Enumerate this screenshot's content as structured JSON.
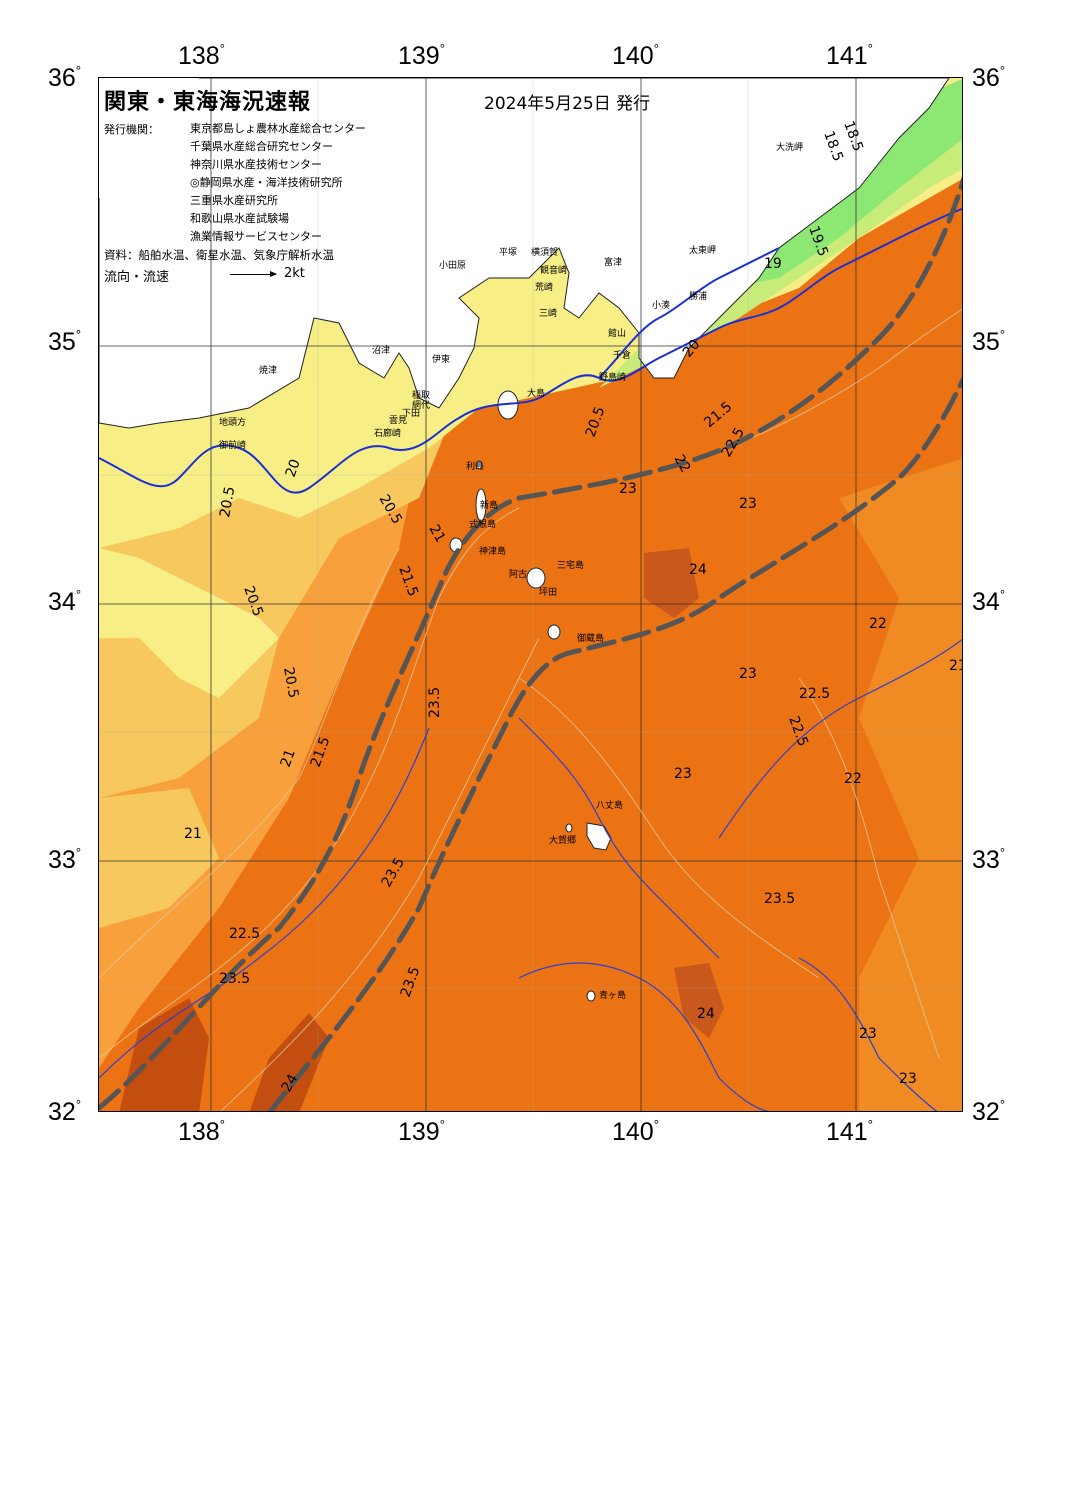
{
  "title": "関東・東海海況速報",
  "issue_date": "2024年5月25日 発行",
  "issuer_label": "発行機関：",
  "issuers": [
    "東京都島しょ農林水産総合センター",
    "千葉県水産総合研究センター",
    "神奈川県水産技術センター",
    "◎静岡県水産・海洋技術研究所",
    "三重県水産研究所",
    "和歌山県水産試験場",
    "漁業情報サービスセンター"
  ],
  "source_text": "資料：船舶水温、衛星水温、気象庁解析水温",
  "flow_legend": {
    "label": "流向・流速",
    "scale": "2kt"
  },
  "lon_labels": [
    "138",
    "139",
    "140",
    "141"
  ],
  "lat_labels": [
    "36",
    "35",
    "34",
    "33",
    "32"
  ],
  "colors": {
    "land": "#ffffff",
    "t18": "#8de873",
    "t19": "#c7ec7a",
    "t20": "#f8ee86",
    "t21": "#f6c85e",
    "t22": "#f7a03c",
    "t23": "#ec7314",
    "t24": "#d4540f",
    "isotherm_20": "#1a2fd4",
    "kuroshio_axis": "#555555"
  },
  "place_labels": [
    "大洗岬",
    "太東岬",
    "勝浦",
    "小湊",
    "館山",
    "千倉",
    "野島崎",
    "富津",
    "横須賀",
    "観音崎",
    "荒崎",
    "三崎",
    "小田原",
    "平塚",
    "網代",
    "伊東",
    "稲取",
    "下田",
    "石廊崎",
    "雲見",
    "大島",
    "利島",
    "新島",
    "式根島",
    "神津島",
    "三宅島",
    "御蔵島",
    "坪田",
    "阿古",
    "八丈島",
    "大賀郷",
    "青ヶ島",
    "焼津",
    "地頭方",
    "御前崎",
    "沼津"
  ],
  "isotherm_labels": [
    "18.5",
    "18.5",
    "19",
    "19.5",
    "20",
    "20",
    "20.5",
    "20.5",
    "20.5",
    "20.5",
    "20.5",
    "21",
    "21",
    "21",
    "21",
    "21.5",
    "21.5",
    "21.5",
    "22",
    "22",
    "22",
    "22.5",
    "22.5",
    "22.5",
    "22.5",
    "23",
    "23",
    "23",
    "23",
    "23",
    "23",
    "23.5",
    "23.5",
    "23.5",
    "23.5",
    "23.5",
    "24",
    "24",
    "24"
  ]
}
